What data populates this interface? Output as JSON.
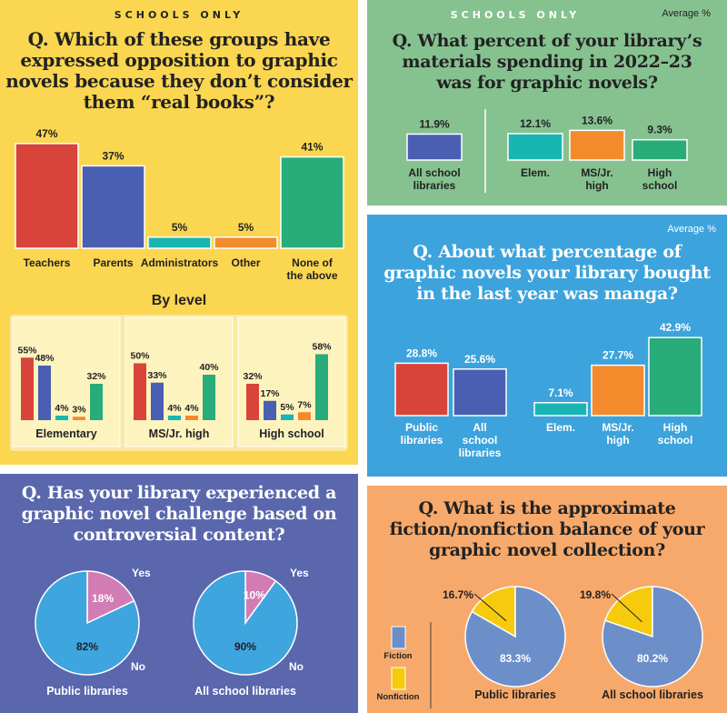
{
  "colors": {
    "yellow": "#fbd651",
    "green": "#86c290",
    "blue": "#3da3dc",
    "indigo": "#5a67ad",
    "orange": "#f7a96b",
    "red": "#d8433a",
    "navy": "#4a5fb1",
    "teal": "#19b5b2",
    "amber": "#f38a2c",
    "emerald": "#28ac79",
    "pieblue": "#3ea5de",
    "piepink": "#d27cb5",
    "pieblue2": "#6c8fca",
    "pieyellow": "#f6cb0e"
  },
  "panel1": {
    "tag": "SCHOOLS ONLY",
    "question_lines": [
      "Q. Which of these groups have",
      "expressed opposition to graphic",
      "novels because they don’t consider",
      "them “real books”?"
    ],
    "by_level_title": "By level"
  },
  "panel2": {
    "tag": "SCHOOLS ONLY",
    "corner_note": "Average %",
    "question_lines": [
      "Q. What percent of your library’s",
      "materials spending in 2022–23",
      "was for graphic novels?"
    ]
  },
  "panel3": {
    "corner_note": "Average %",
    "question_lines": [
      "Q. About what percentage of",
      "graphic novels your library bought",
      "in the last year was manga?"
    ]
  },
  "panel4": {
    "question_lines": [
      "Q. Has your library experienced a",
      "graphic novel challenge based on",
      "controversial content?"
    ]
  },
  "panel5": {
    "question_lines": [
      "Q. What is the approximate",
      "fiction/nonfiction balance of your",
      "graphic novel collection?"
    ],
    "legend": [
      {
        "label": "Fiction",
        "color": "#6c8fca"
      },
      {
        "label": "Nonfiction",
        "color": "#f6cb0e"
      }
    ]
  },
  "chart_data": [
    {
      "type": "bar",
      "id": "opposition-overall",
      "categories": [
        [
          "Teachers"
        ],
        [
          "Parents"
        ],
        [
          "Administrators"
        ],
        [
          "Other"
        ],
        [
          "None of",
          "the above"
        ]
      ],
      "values": [
        47,
        37,
        5,
        5,
        41
      ],
      "labels": [
        "47%",
        "37%",
        "5%",
        "5%",
        "41%"
      ],
      "colors": [
        "#d8433a",
        "#4a5fb1",
        "#19b5b2",
        "#f38a2c",
        "#28ac79"
      ]
    },
    {
      "type": "bar",
      "id": "opposition-by-level",
      "groups": [
        {
          "name": "Elementary",
          "values": [
            55,
            48,
            4,
            3,
            32
          ],
          "labels": [
            "55%",
            "48%",
            "4%",
            "3%",
            "32%"
          ]
        },
        {
          "name": "MS/Jr. high",
          "values": [
            50,
            33,
            4,
            4,
            40
          ],
          "labels": [
            "50%",
            "33%",
            "4%",
            "4%",
            "40%"
          ]
        },
        {
          "name": "High school",
          "values": [
            32,
            17,
            5,
            7,
            58
          ],
          "labels": [
            "32%",
            "17%",
            "5%",
            "7%",
            "58%"
          ]
        }
      ],
      "colors": [
        "#d8433a",
        "#4a5fb1",
        "#19b5b2",
        "#f38a2c",
        "#28ac79"
      ]
    },
    {
      "type": "bar",
      "id": "materials-spending",
      "categories": [
        [
          "All school",
          "libraries"
        ],
        [
          "Elem."
        ],
        [
          "MS/Jr.",
          "high"
        ],
        [
          "High",
          "school"
        ]
      ],
      "values": [
        11.9,
        12.1,
        13.6,
        9.3
      ],
      "labels": [
        "11.9%",
        "12.1%",
        "13.6%",
        "9.3%"
      ],
      "colors": [
        "#4a5fb1",
        "#19b5b2",
        "#f38a2c",
        "#28ac79"
      ]
    },
    {
      "type": "bar",
      "id": "manga-share",
      "categories": [
        [
          "Public",
          "libraries"
        ],
        [
          "All",
          "school",
          "libraries"
        ],
        [
          "Elem."
        ],
        [
          "MS/Jr.",
          "high"
        ],
        [
          "High",
          "school"
        ]
      ],
      "values": [
        28.8,
        25.6,
        7.1,
        27.7,
        42.9
      ],
      "labels": [
        "28.8%",
        "25.6%",
        "7.1%",
        "27.7%",
        "42.9%"
      ],
      "colors": [
        "#d8433a",
        "#4a5fb1",
        "#19b5b2",
        "#f38a2c",
        "#28ac79"
      ]
    },
    {
      "type": "pie",
      "id": "challenge",
      "pies": [
        {
          "name": "Public libraries",
          "slices": [
            {
              "label": "Yes",
              "value": 18,
              "text": "18%"
            },
            {
              "label": "No",
              "value": 82,
              "text": "82%"
            }
          ]
        },
        {
          "name": "All school libraries",
          "slices": [
            {
              "label": "Yes",
              "value": 10,
              "text": "10%"
            },
            {
              "label": "No",
              "value": 90,
              "text": "90%"
            }
          ]
        }
      ]
    },
    {
      "type": "pie",
      "id": "fiction-balance",
      "pies": [
        {
          "name": "Public libraries",
          "slices": [
            {
              "label": "Nonfiction",
              "value": 16.7,
              "text": "16.7%"
            },
            {
              "label": "Fiction",
              "value": 83.3,
              "text": "83.3%"
            }
          ]
        },
        {
          "name": "All school libraries",
          "slices": [
            {
              "label": "Nonfiction",
              "value": 19.8,
              "text": "19.8%"
            },
            {
              "label": "Fiction",
              "value": 80.2,
              "text": "80.2%"
            }
          ]
        }
      ]
    }
  ]
}
